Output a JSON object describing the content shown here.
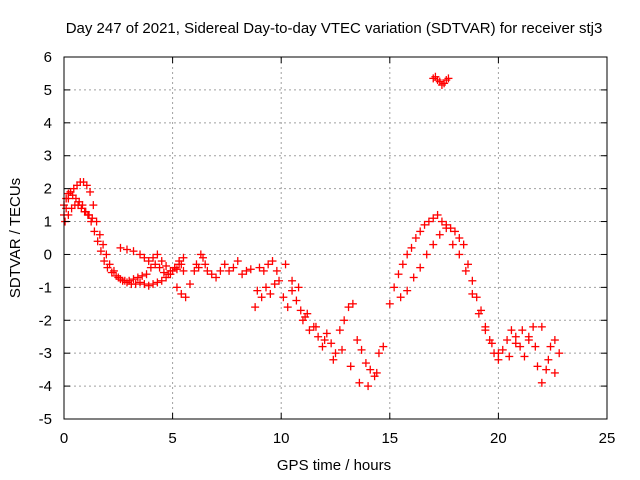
{
  "chart_data": {
    "type": "scatter",
    "title": "Day 247 of 2021, Sidereal Day-to-day VTEC variation (SDTVAR) for receiver stj3",
    "xlabel": "GPS time / hours",
    "ylabel": "SDTVAR / TECUs",
    "xlim": [
      0,
      25
    ],
    "ylim": [
      -5,
      6
    ],
    "x_ticks": [
      0,
      5,
      10,
      15,
      20,
      25
    ],
    "x_tick_labels": [
      "0",
      "5",
      "10",
      "15",
      "20",
      "25"
    ],
    "y_ticks": [
      -5,
      -4,
      -3,
      -2,
      -1,
      0,
      1,
      2,
      3,
      4,
      5,
      6
    ],
    "y_tick_labels": [
      "-5",
      "-4",
      "-3",
      "-2",
      "-1",
      "0",
      "1",
      "2",
      "3",
      "4",
      "5",
      "6"
    ],
    "grid": true,
    "marker": "plus",
    "series": [
      {
        "name": "SDTVAR",
        "color": "#ff0000",
        "x": [
          0.0,
          0.1,
          0.2,
          0.3,
          0.45,
          0.6,
          0.75,
          0.9,
          1.05,
          1.2,
          1.35,
          1.5,
          1.65,
          1.8,
          1.95,
          2.1,
          2.3,
          2.5,
          2.7,
          2.9,
          3.1,
          3.3,
          3.5,
          3.7,
          3.9,
          4.1,
          4.3,
          4.5,
          4.7,
          4.9,
          5.1,
          5.3,
          5.5,
          0.05,
          0.2,
          0.35,
          0.5,
          0.65,
          0.8,
          0.95,
          1.1,
          1.25,
          1.4,
          1.55,
          1.7,
          1.85,
          2.0,
          2.2,
          2.4,
          2.6,
          2.8,
          3.0,
          3.2,
          3.4,
          3.6,
          3.8,
          4.0,
          4.2,
          4.4,
          4.6,
          4.8,
          5.0,
          5.2,
          5.4,
          0.0,
          0.1,
          0.2,
          0.3,
          0.4,
          0.55,
          0.7,
          0.85,
          1.0,
          1.15,
          1.3,
          2.6,
          2.9,
          3.2,
          3.5,
          3.7,
          3.9,
          4.1,
          4.3,
          4.5,
          4.7,
          4.9,
          5.1,
          5.3,
          5.5,
          5.2,
          5.4,
          5.6,
          5.8,
          6.0,
          6.1,
          6.2,
          6.3,
          6.4,
          6.5,
          6.6,
          6.8,
          7.0,
          7.2,
          7.4,
          7.6,
          7.8,
          8.0,
          8.2,
          8.4,
          8.6,
          8.8,
          9.0,
          9.2,
          9.4,
          9.6,
          9.8,
          8.9,
          9.1,
          9.3,
          9.5,
          9.7,
          9.9,
          10.1,
          10.3,
          10.5,
          10.7,
          10.9,
          11.0,
          11.1,
          11.3,
          11.5,
          11.7,
          11.9,
          12.1,
          12.3,
          12.5,
          12.7,
          12.9,
          13.1,
          13.3,
          13.5,
          13.7,
          13.9,
          14.1,
          14.3,
          14.5,
          14.7,
          10.2,
          10.5,
          10.8,
          11.2,
          11.6,
          12.0,
          12.4,
          12.8,
          13.2,
          13.6,
          14.0,
          14.4,
          15.0,
          15.2,
          15.4,
          15.6,
          15.8,
          16.0,
          16.2,
          16.4,
          16.6,
          16.8,
          17.0,
          17.2,
          17.4,
          17.6,
          17.8,
          18.0,
          18.2,
          18.4,
          18.6,
          18.8,
          19.0,
          19.2,
          19.4,
          19.6,
          19.8,
          20.0,
          15.5,
          15.8,
          16.1,
          16.4,
          16.7,
          17.0,
          17.3,
          17.6,
          17.9,
          18.2,
          18.5,
          18.8,
          19.1,
          19.4,
          19.7,
          20.0,
          17.0,
          17.1,
          17.2,
          17.3,
          17.4,
          17.5,
          17.6,
          17.7,
          20.2,
          20.4,
          20.6,
          20.8,
          21.0,
          21.2,
          21.4,
          21.6,
          21.8,
          22.0,
          22.2,
          22.4,
          22.6,
          22.8,
          20.5,
          20.8,
          21.1,
          21.4,
          21.7,
          22.0,
          22.3,
          22.6
        ],
        "y": [
          1.2,
          1.4,
          1.7,
          1.9,
          2.0,
          2.1,
          2.2,
          2.2,
          2.1,
          1.9,
          1.5,
          1.0,
          0.6,
          0.3,
          0.0,
          -0.3,
          -0.5,
          -0.7,
          -0.8,
          -0.85,
          -0.9,
          -0.9,
          -0.85,
          -0.9,
          -0.95,
          -0.9,
          -0.85,
          -0.8,
          -0.7,
          -0.6,
          -0.4,
          -0.3,
          -0.5,
          1.0,
          1.2,
          1.4,
          1.5,
          1.5,
          1.4,
          1.3,
          1.2,
          1.0,
          0.7,
          0.4,
          0.1,
          -0.2,
          -0.4,
          -0.55,
          -0.65,
          -0.75,
          -0.8,
          -0.8,
          -0.75,
          -0.7,
          -0.65,
          -0.6,
          -0.4,
          -0.3,
          -0.4,
          -0.55,
          -0.6,
          -0.5,
          -0.45,
          -0.3,
          1.5,
          1.7,
          1.85,
          1.9,
          1.8,
          1.7,
          1.6,
          1.5,
          1.3,
          1.2,
          1.1,
          0.2,
          0.15,
          0.1,
          0.0,
          -0.1,
          -0.2,
          -0.1,
          0.0,
          -0.2,
          -0.35,
          -0.5,
          -0.4,
          -0.2,
          -0.1,
          -1.0,
          -1.2,
          -1.3,
          -0.9,
          -0.5,
          -0.3,
          -0.4,
          0.0,
          -0.1,
          -0.3,
          -0.5,
          -0.6,
          -0.7,
          -0.5,
          -0.3,
          -0.5,
          -0.4,
          -0.2,
          -0.6,
          -0.5,
          -0.45,
          -1.6,
          -0.4,
          -0.5,
          -0.3,
          -0.2,
          -0.5,
          -1.1,
          -1.3,
          -1.0,
          -1.2,
          -0.9,
          -0.8,
          -1.3,
          -1.6,
          -1.1,
          -1.4,
          -1.7,
          -2.0,
          -1.9,
          -2.3,
          -2.2,
          -2.5,
          -2.8,
          -2.4,
          -2.7,
          -3.0,
          -2.3,
          -2.0,
          -1.6,
          -1.5,
          -2.6,
          -2.9,
          -3.3,
          -3.5,
          -3.7,
          -3.0,
          -2.8,
          -0.3,
          -0.8,
          -1.0,
          -1.8,
          -2.2,
          -2.6,
          -3.2,
          -2.9,
          -3.4,
          -3.9,
          -4.0,
          -3.6,
          -1.5,
          -1.0,
          -0.6,
          -0.3,
          0.0,
          0.2,
          0.5,
          0.7,
          0.9,
          1.0,
          1.1,
          1.2,
          1.0,
          0.9,
          0.8,
          0.7,
          0.5,
          0.3,
          -0.3,
          -0.8,
          -1.3,
          -1.7,
          -2.2,
          -2.6,
          -3.0,
          -3.2,
          -1.3,
          -1.1,
          -0.7,
          -0.4,
          0.0,
          0.3,
          0.6,
          0.8,
          0.3,
          0.0,
          -0.5,
          -1.2,
          -1.8,
          -2.3,
          -2.7,
          -3.0,
          5.35,
          5.4,
          5.3,
          5.25,
          5.15,
          5.2,
          5.3,
          5.35,
          -2.9,
          -2.6,
          -2.3,
          -2.5,
          -2.8,
          -3.1,
          -2.5,
          -2.2,
          -3.4,
          -3.9,
          -3.5,
          -2.8,
          -2.6,
          -3.0,
          -3.1,
          -2.7,
          -2.3,
          -2.6,
          -2.8,
          -2.2,
          -3.2,
          -3.6
        ]
      }
    ]
  }
}
